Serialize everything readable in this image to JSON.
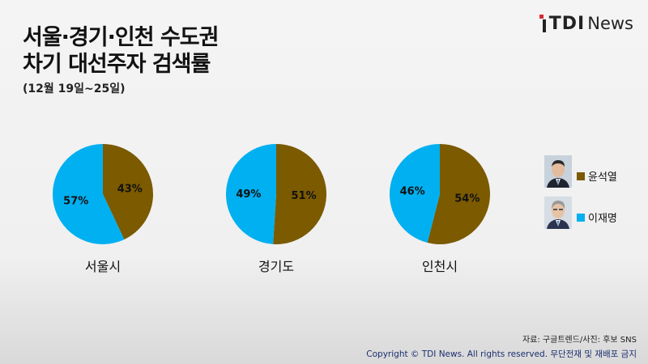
{
  "header": {
    "title_line1": "서울·경기·인천 수도권",
    "title_line2": "차기 대선주자 검색률",
    "subtitle": "(12월 19일~25일)"
  },
  "logo": {
    "mark": "TDI",
    "word": "News"
  },
  "colors": {
    "yoon": "#7b5a00",
    "lee": "#00b0f0"
  },
  "legend": [
    {
      "name": "윤석열",
      "color": "#7b5a00",
      "photo": "candidate-photo-yoon"
    },
    {
      "name": "이재명",
      "color": "#00b0f0",
      "photo": "candidate-photo-lee"
    }
  ],
  "chart_data": {
    "type": "pie",
    "series_names": [
      "윤석열",
      "이재명"
    ],
    "charts": [
      {
        "category": "서울시",
        "values": [
          43,
          57
        ],
        "labels": [
          "43%",
          "57%"
        ]
      },
      {
        "category": "경기도",
        "values": [
          51,
          49
        ],
        "labels": [
          "51%",
          "49%"
        ]
      },
      {
        "category": "인천시",
        "values": [
          54,
          46
        ],
        "labels": [
          "54%",
          "46%"
        ]
      }
    ]
  },
  "footer": {
    "source": "자료: 구글트렌드/사진: 후보 SNS",
    "copyright": "Copyright © TDI News. All rights reserved. 무단전재 및 재배포 금지"
  }
}
